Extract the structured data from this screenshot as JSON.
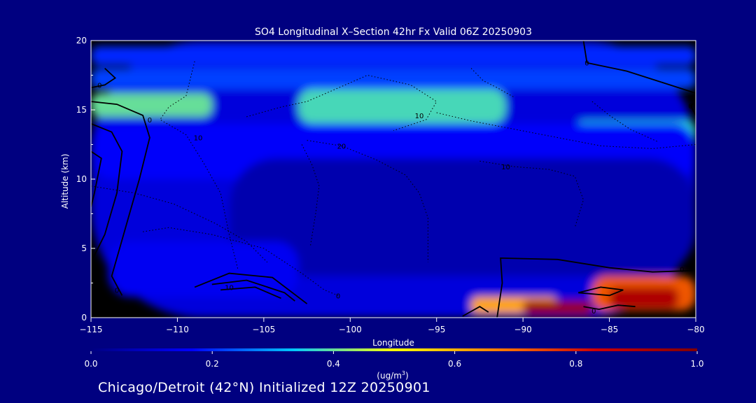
{
  "chart_data": {
    "type": "heatmap",
    "title": "SO4 Longitudinal X–Section 42hr  Fx Valid 06Z 20250903",
    "xlabel": "Longitude",
    "ylabel": "Altitude (km)",
    "xlim": [
      -115,
      -80
    ],
    "ylim": [
      0,
      20
    ],
    "x_ticks": [
      -115,
      -110,
      -105,
      -100,
      -95,
      -90,
      -85,
      -80
    ],
    "x_tick_labels": [
      "−115",
      "−110",
      "−105",
      "−100",
      "−95",
      "−90",
      "−85",
      "−80"
    ],
    "y_ticks": [
      0,
      5,
      10,
      15,
      20
    ],
    "y_tick_labels": [
      "0",
      "5",
      "10",
      "15",
      "20"
    ],
    "colorbar": {
      "min": 0.0,
      "max": 1.0,
      "ticks": [
        0.0,
        0.2,
        0.4,
        0.6,
        0.8,
        1.0
      ],
      "tick_labels": [
        "0.0",
        "0.2",
        "0.4",
        "0.6",
        "0.8",
        "1.0"
      ],
      "unit_label": "(ug/m",
      "unit_sup": "3",
      "unit_tail": ")",
      "colormap": [
        "#000080",
        "#0000ff",
        "#00c8ff",
        "#ffff00",
        "#ff8000",
        "#cc0000",
        "#800000"
      ]
    },
    "field_regions": [
      {
        "lon": [
          -115,
          -80
        ],
        "alt": [
          0,
          20
        ],
        "value": 0.12
      },
      {
        "lon": [
          -115,
          -80
        ],
        "alt": [
          18.2,
          19.6
        ],
        "value": 0.2
      },
      {
        "lon": [
          -115,
          -80
        ],
        "alt": [
          16.5,
          18.0
        ],
        "value": 0.22
      },
      {
        "lon": [
          -115,
          -108
        ],
        "alt": [
          14.5,
          16.2
        ],
        "value": 0.4
      },
      {
        "lon": [
          -103,
          -91
        ],
        "alt": [
          14.0,
          16.5
        ],
        "value": 0.38
      },
      {
        "lon": [
          -87,
          -80
        ],
        "alt": [
          12.5,
          14.2
        ],
        "value": 0.36
      },
      {
        "lon": [
          -115,
          -80
        ],
        "alt": [
          10.0,
          14.0
        ],
        "value": 0.16
      },
      {
        "lon": [
          -107,
          -80
        ],
        "alt": [
          3.0,
          11.5
        ],
        "value": 0.06
      },
      {
        "lon": [
          -114,
          -103
        ],
        "alt": [
          1.5,
          5.5
        ],
        "value": 0.15
      },
      {
        "lon": [
          -93,
          -88
        ],
        "alt": [
          0.3,
          1.5
        ],
        "value": 0.62
      },
      {
        "lon": [
          -90,
          -86
        ],
        "alt": [
          0.2,
          1.2
        ],
        "value": 0.95
      },
      {
        "lon": [
          -86,
          -80
        ],
        "alt": [
          0.5,
          3.0
        ],
        "value": 0.72
      },
      {
        "lon": [
          -85,
          -81
        ],
        "alt": [
          0.6,
          2.2
        ],
        "value": 0.9
      }
    ],
    "contour_labels": [
      {
        "text": "0",
        "lon": -114.5,
        "alt": 16.8
      },
      {
        "text": "0",
        "lon": -86.3,
        "alt": 18.4
      },
      {
        "text": "0",
        "lon": -80.3,
        "alt": 15.3
      },
      {
        "text": "0",
        "lon": -111.6,
        "alt": 14.3
      },
      {
        "text": "10",
        "lon": -96.0,
        "alt": 14.6
      },
      {
        "text": "10",
        "lon": -108.8,
        "alt": 13.0
      },
      {
        "text": "20",
        "lon": -100.5,
        "alt": 12.4
      },
      {
        "text": "10",
        "lon": -91.0,
        "alt": 10.9
      },
      {
        "text": "0",
        "lon": -113.5,
        "alt": 2.0
      },
      {
        "text": "10",
        "lon": -107.0,
        "alt": 2.2
      },
      {
        "text": "0",
        "lon": -100.7,
        "alt": 1.6
      },
      {
        "text": "0",
        "lon": -85.9,
        "alt": 0.5
      },
      {
        "text": "0",
        "lon": -80.8,
        "alt": 3.5
      }
    ]
  },
  "footer": {
    "caption": "Chicago/Detroit (42°N) Initialized 12Z 20250901"
  }
}
